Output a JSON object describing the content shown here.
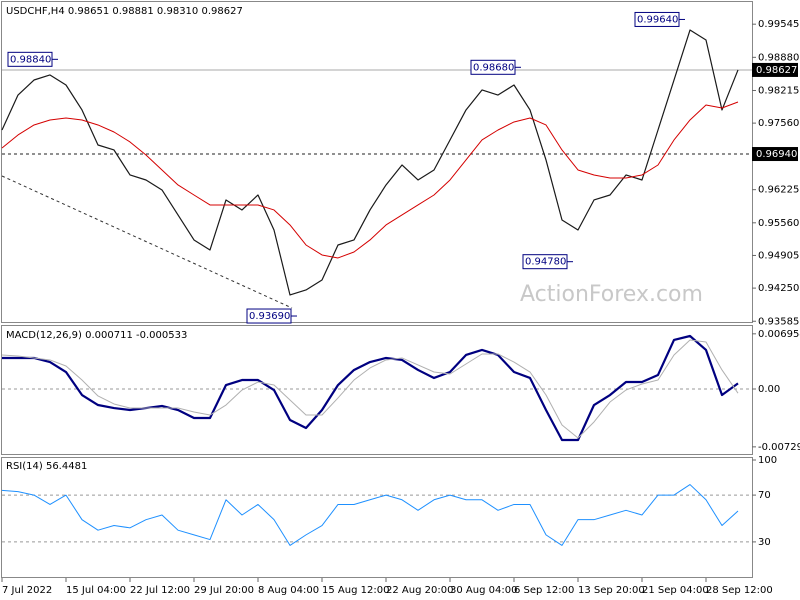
{
  "chart_data": [
    {
      "type": "line",
      "title": "USDCHF,H4 0.98651 0.98881 0.98310 0.98627",
      "watermark": "ActionForex.com",
      "ylim": [
        0.9357,
        0.9997
      ],
      "yticks": [
        0.99545,
        {
          "value": 0.9888,
          "label": "0.98880"
        },
        0.98215,
        {
          "value": 0.9756,
          "label": "0.97560"
        },
        0.96225,
        {
          "value": 0.9556,
          "label": "0.95560"
        },
        0.94905,
        {
          "value": 0.9425,
          "label": "0.94250"
        },
        0.93585
      ],
      "levels": [
        {
          "value": 0.9694,
          "label": "0.96940",
          "line": "dashed"
        },
        {
          "value": 0.98627,
          "label": "0.98627",
          "line": "solid"
        }
      ],
      "annotations": [
        {
          "value": 0.9884,
          "label": "0.98840"
        },
        {
          "value": 0.9964,
          "label": "0.99640"
        },
        {
          "value": 0.9868,
          "label": "0.98680"
        },
        {
          "value": 0.9478,
          "label": "0.94780"
        },
        {
          "value": 0.9369,
          "label": "0.93690"
        }
      ],
      "series": [
        {
          "name": "USDCHF",
          "color": "#1a1a1a",
          "width": 1.2,
          "values": [
            0.97422,
            0.98124,
            0.98425,
            0.98526,
            0.98325,
            0.97824,
            0.97121,
            0.97021,
            0.9652,
            0.96419,
            0.96219,
            0.95717,
            0.95216,
            0.95015,
            0.96018,
            0.95818,
            0.96118,
            0.95416,
            0.94112,
            0.94213,
            0.94413,
            0.95115,
            0.95216,
            0.95818,
            0.96319,
            0.9672,
            0.96419,
            0.9662,
            0.97222,
            0.97824,
            0.98225,
            0.98124,
            0.98325,
            0.97824,
            0.96821,
            0.95617,
            0.95416,
            0.96018,
            0.96118,
            0.9652,
            0.96419,
            0.97422,
            0.98425,
            0.99428,
            0.99228,
            0.97824,
            0.98627
          ]
        },
        {
          "name": "MA",
          "color": "#d40000",
          "width": 1,
          "values": [
            0.97061,
            0.97322,
            0.97523,
            0.97623,
            0.97663,
            0.97623,
            0.97523,
            0.97382,
            0.97182,
            0.96921,
            0.9662,
            0.96319,
            0.96118,
            0.95918,
            0.95918,
            0.95918,
            0.95918,
            0.95818,
            0.95517,
            0.95115,
            0.94915,
            0.94855,
            0.94975,
            0.95216,
            0.95517,
            0.95717,
            0.95918,
            0.96118,
            0.96419,
            0.96821,
            0.97222,
            0.97422,
            0.97583,
            0.97663,
            0.97523,
            0.97021,
            0.9662,
            0.9652,
            0.96459,
            0.96459,
            0.9652,
            0.9672,
            0.97222,
            0.97623,
            0.97924,
            0.97864,
            0.97984
          ]
        }
      ]
    },
    {
      "type": "line",
      "title": "MACD(12,26,9) 0.000711 -0.000533",
      "ylim": [
        -0.00832,
        0.00794
      ],
      "yticks": [
        0.006954,
        {
          "value": 0,
          "label": "0.00"
        },
        -0.007294
      ],
      "zero_line": true,
      "series": [
        {
          "name": "MACD",
          "color": "#000080",
          "width": 2.2,
          "values": [
            0.00391,
            0.00391,
            0.00391,
            0.0034,
            0.00214,
            -0.00076,
            -0.00202,
            -0.0024,
            -0.00265,
            -0.0024,
            -0.00214,
            -0.00265,
            -0.00366,
            -0.00366,
            0.0005,
            0.00113,
            0.00113,
            -0.00013,
            -0.00391,
            -0.00492,
            -0.00265,
            0.0005,
            0.0024,
            0.0034,
            0.00391,
            0.00366,
            0.0024,
            0.00139,
            0.00214,
            0.00429,
            0.00492,
            0.00429,
            0.00214,
            0.00139,
            -0.00265,
            -0.00643,
            -0.00643,
            -0.00202,
            -0.00076,
            0.00088,
            0.00088,
            0.00177,
            0.00618,
            0.00668,
            0.00492,
            -0.00076,
            0.00071
          ]
        },
        {
          "name": "Signal",
          "color": "#b0b0b0",
          "width": 1,
          "values": [
            0.00429,
            0.00416,
            0.00391,
            0.00366,
            0.0029,
            0.00113,
            -0.00088,
            -0.00189,
            -0.0024,
            -0.0024,
            -0.0024,
            -0.0024,
            -0.0029,
            -0.00328,
            -0.00202,
            -0.00013,
            0.00088,
            0.0005,
            -0.00139,
            -0.00328,
            -0.00328,
            -0.00113,
            0.00113,
            0.00265,
            0.00366,
            0.00391,
            0.00303,
            0.00214,
            0.00189,
            0.00315,
            0.00441,
            0.00441,
            0.0034,
            0.00214,
            -0.00076,
            -0.00454,
            -0.00618,
            -0.00416,
            -0.00164,
            -0.00013,
            0.00063,
            0.00113,
            0.00429,
            0.00618,
            0.00592,
            0.0024,
            -0.00053
          ]
        }
      ]
    },
    {
      "type": "line",
      "title": "RSI(14) 56.4481",
      "ylim": [
        0,
        100
      ],
      "yticks": [
        100,
        70,
        30
      ],
      "grid": true,
      "categories": [
        "7 Jul 2022",
        null,
        null,
        null,
        "15 Jul 04:00",
        null,
        null,
        null,
        "22 Jul 12:00",
        null,
        null,
        null,
        "29 Jul 20:00",
        null,
        null,
        null,
        "8 Aug 04:00",
        null,
        null,
        null,
        "15 Aug 12:00",
        null,
        null,
        null,
        "22 Aug 20:00",
        null,
        null,
        null,
        "30 Aug 04:00",
        null,
        null,
        null,
        "6 Sep 12:00",
        null,
        null,
        null,
        "13 Sep 20:00",
        null,
        null,
        null,
        "21 Sep 04:00",
        null,
        null,
        null,
        "28 Sep 12:00",
        null,
        null
      ],
      "series": [
        {
          "name": "RSI",
          "color": "#1e90ff",
          "width": 1,
          "values": [
            74,
            73,
            70,
            62,
            70,
            49,
            40,
            44,
            42,
            49,
            53,
            40,
            36,
            32,
            66,
            53,
            62,
            49,
            27,
            36,
            44,
            62,
            62,
            66,
            70,
            66,
            57,
            66,
            70,
            66,
            66,
            57,
            62,
            62,
            36,
            27,
            49,
            49,
            53,
            57,
            53,
            70,
            70,
            79,
            66,
            44,
            56.4481
          ]
        }
      ]
    }
  ]
}
